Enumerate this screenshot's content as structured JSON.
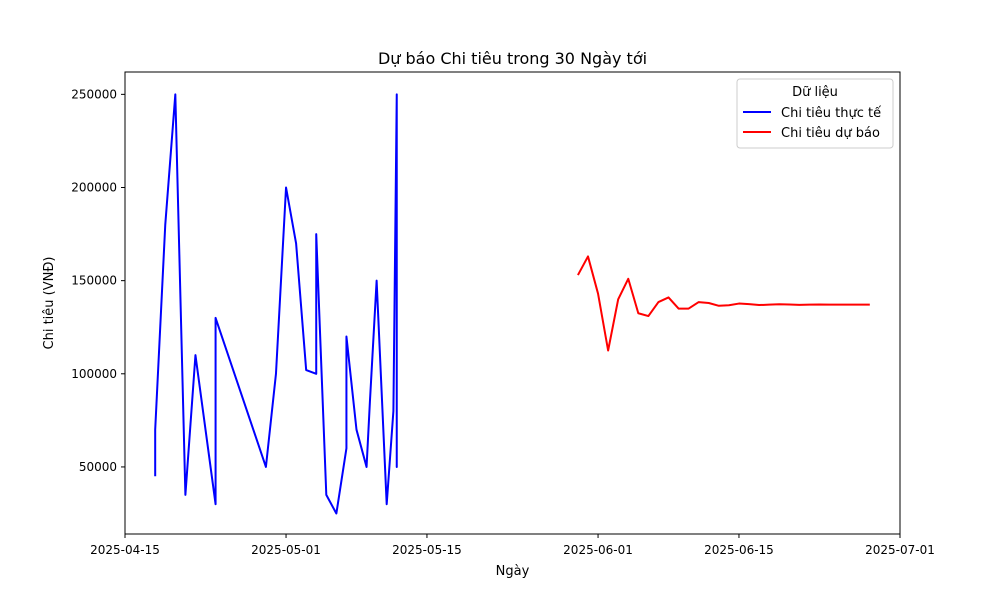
{
  "chart_data": {
    "type": "line",
    "title": "Dự báo Chi tiêu trong 30 Ngày tới",
    "xlabel": "Ngày",
    "ylabel": "Chi tiêu (VNĐ)",
    "ylim": [
      14000,
      262000
    ],
    "xlim": [
      "2025-04-15T00:00",
      "2025-07-01T00:00"
    ],
    "x_tick_labels": [
      "2025-04-15",
      "2025-05-01",
      "2025-05-15",
      "2025-06-01",
      "2025-06-15",
      "2025-07-01"
    ],
    "y_ticks": [
      50000,
      100000,
      150000,
      200000,
      250000
    ],
    "y_tick_labels": [
      "50000",
      "100000",
      "150000",
      "200000",
      "250000"
    ],
    "grid": false,
    "legend": {
      "title": "Dữ liệu",
      "placement": "top-right"
    },
    "series": [
      {
        "name": "Chi tiêu thực tế",
        "color": "#0000ff",
        "points": [
          {
            "x": "2025-04-18T00:00",
            "y": 45000
          },
          {
            "x": "2025-04-18T00:00",
            "y": 70000
          },
          {
            "x": "2025-04-19T00:00",
            "y": 180000
          },
          {
            "x": "2025-04-20T00:00",
            "y": 250000
          },
          {
            "x": "2025-04-21T00:00",
            "y": 35000
          },
          {
            "x": "2025-04-22T00:00",
            "y": 110000
          },
          {
            "x": "2025-04-24T00:00",
            "y": 30000
          },
          {
            "x": "2025-04-24T00:00",
            "y": 130000
          },
          {
            "x": "2025-04-29T00:00",
            "y": 50000
          },
          {
            "x": "2025-04-30T00:00",
            "y": 100000
          },
          {
            "x": "2025-05-01T00:00",
            "y": 200000
          },
          {
            "x": "2025-05-02T00:00",
            "y": 170000
          },
          {
            "x": "2025-05-03T00:00",
            "y": 102000
          },
          {
            "x": "2025-05-04T00:00",
            "y": 100000
          },
          {
            "x": "2025-05-04T00:00",
            "y": 175000
          },
          {
            "x": "2025-05-05T00:00",
            "y": 35000
          },
          {
            "x": "2025-05-06T00:00",
            "y": 25000
          },
          {
            "x": "2025-05-07T00:00",
            "y": 60000
          },
          {
            "x": "2025-05-07T00:00",
            "y": 120000
          },
          {
            "x": "2025-05-08T00:00",
            "y": 70000
          },
          {
            "x": "2025-05-09T00:00",
            "y": 50000
          },
          {
            "x": "2025-05-09T08:00",
            "y": 85000
          },
          {
            "x": "2025-05-10T00:00",
            "y": 150000
          },
          {
            "x": "2025-05-11T00:00",
            "y": 30000
          },
          {
            "x": "2025-05-11T16:00",
            "y": 80000
          },
          {
            "x": "2025-05-12T00:00",
            "y": 250000
          },
          {
            "x": "2025-05-12T00:00",
            "y": 50000
          },
          {
            "x": "2025-05-12T00:00",
            "y": 100000
          }
        ]
      },
      {
        "name": "Chi tiêu dự báo",
        "color": "#ff0000",
        "points": [
          {
            "x": "2025-05-30T00:00",
            "y": 153000
          },
          {
            "x": "2025-05-31T00:00",
            "y": 163000
          },
          {
            "x": "2025-06-01T00:00",
            "y": 143000
          },
          {
            "x": "2025-06-02T00:00",
            "y": 112500
          },
          {
            "x": "2025-06-03T00:00",
            "y": 140000
          },
          {
            "x": "2025-06-04T00:00",
            "y": 151000
          },
          {
            "x": "2025-06-05T00:00",
            "y": 132500
          },
          {
            "x": "2025-06-06T00:00",
            "y": 131000
          },
          {
            "x": "2025-06-07T00:00",
            "y": 138500
          },
          {
            "x": "2025-06-08T00:00",
            "y": 141000
          },
          {
            "x": "2025-06-09T00:00",
            "y": 135000
          },
          {
            "x": "2025-06-10T00:00",
            "y": 135000
          },
          {
            "x": "2025-06-11T00:00",
            "y": 138500
          },
          {
            "x": "2025-06-12T00:00",
            "y": 138000
          },
          {
            "x": "2025-06-13T00:00",
            "y": 136500
          },
          {
            "x": "2025-06-14T00:00",
            "y": 136800
          },
          {
            "x": "2025-06-15T00:00",
            "y": 137700
          },
          {
            "x": "2025-06-16T00:00",
            "y": 137400
          },
          {
            "x": "2025-06-17T00:00",
            "y": 136900
          },
          {
            "x": "2025-06-18T00:00",
            "y": 137100
          },
          {
            "x": "2025-06-19T00:00",
            "y": 137300
          },
          {
            "x": "2025-06-20T00:00",
            "y": 137200
          },
          {
            "x": "2025-06-21T00:00",
            "y": 137000
          },
          {
            "x": "2025-06-22T00:00",
            "y": 137100
          },
          {
            "x": "2025-06-23T00:00",
            "y": 137200
          },
          {
            "x": "2025-06-24T00:00",
            "y": 137150
          },
          {
            "x": "2025-06-25T00:00",
            "y": 137100
          },
          {
            "x": "2025-06-26T00:00",
            "y": 137100
          },
          {
            "x": "2025-06-27T00:00",
            "y": 137150
          },
          {
            "x": "2025-06-28T00:00",
            "y": 137150
          }
        ]
      }
    ]
  }
}
